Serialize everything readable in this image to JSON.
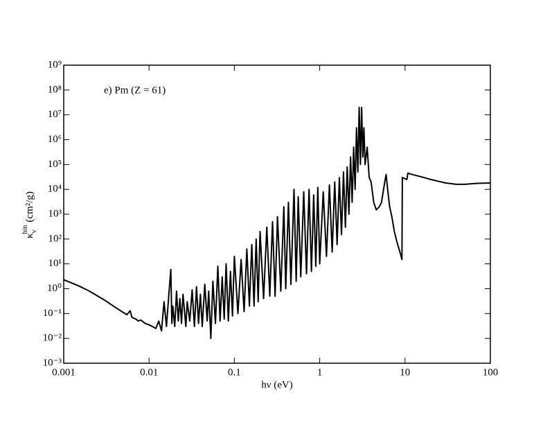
{
  "chart_data": {
    "type": "line",
    "annotation": "e) Pm (Z = 61)",
    "x_label": "hν (eV)",
    "y_label": {
      "symbol": "κ",
      "subscript": "ν",
      "superscript": "bin",
      "unit": "(cm²/g)"
    },
    "log_x": true,
    "log_y": true,
    "color": "#000000",
    "xlim": [
      0.001,
      100
    ],
    "ylim": [
      0.001,
      1000000000
    ],
    "xticks": [
      0.001,
      0.01,
      0.1,
      1,
      10,
      100
    ],
    "yticks": [
      {
        "value": 0.001,
        "label": "10⁻³"
      },
      {
        "value": 0.01,
        "label": "10⁻²"
      },
      {
        "value": 0.1,
        "label": "10⁻¹"
      },
      {
        "value": 1,
        "label": "10⁰"
      },
      {
        "value": 10,
        "label": "10¹"
      },
      {
        "value": 100,
        "label": "10²"
      },
      {
        "value": 1000,
        "label": "10³"
      },
      {
        "value": 10000,
        "label": "10⁴"
      },
      {
        "value": 100000,
        "label": "10⁵"
      },
      {
        "value": 1000000,
        "label": "10⁶"
      },
      {
        "value": 10000000,
        "label": "10⁷"
      },
      {
        "value": 100000000,
        "label": "10⁸"
      },
      {
        "value": 1000000000,
        "label": "10⁹"
      }
    ],
    "x": [
      0.001,
      0.0015,
      0.002,
      0.003,
      0.004,
      0.005,
      0.0055,
      0.006,
      0.0063,
      0.007,
      0.0075,
      0.008,
      0.009,
      0.01,
      0.011,
      0.012,
      0.013,
      0.014,
      0.015,
      0.016,
      0.017,
      0.018,
      0.0185,
      0.019,
      0.02,
      0.021,
      0.022,
      0.023,
      0.024,
      0.025,
      0.027,
      0.028,
      0.03,
      0.032,
      0.034,
      0.036,
      0.038,
      0.04,
      0.042,
      0.045,
      0.048,
      0.05,
      0.053,
      0.056,
      0.06,
      0.064,
      0.068,
      0.072,
      0.076,
      0.08,
      0.085,
      0.09,
      0.095,
      0.1,
      0.11,
      0.12,
      0.13,
      0.14,
      0.15,
      0.16,
      0.17,
      0.18,
      0.19,
      0.2,
      0.22,
      0.24,
      0.26,
      0.28,
      0.3,
      0.32,
      0.35,
      0.38,
      0.4,
      0.43,
      0.46,
      0.5,
      0.53,
      0.56,
      0.6,
      0.65,
      0.7,
      0.75,
      0.8,
      0.85,
      0.9,
      0.95,
      1,
      1.1,
      1.2,
      1.3,
      1.4,
      1.5,
      1.6,
      1.7,
      1.8,
      1.9,
      2,
      2.1,
      2.2,
      2.3,
      2.4,
      2.5,
      2.6,
      2.7,
      2.8,
      2.9,
      3.0,
      3.1,
      3.2,
      3.3,
      3.4,
      3.6,
      3.8,
      4.0,
      4.3,
      4.6,
      5.0,
      5.3,
      5.6,
      6.0,
      6.3,
      6.6,
      7.0,
      7.5,
      8.0,
      8.5,
      9.0,
      9.2,
      9.3,
      10.5,
      10.8,
      12,
      15,
      20,
      30,
      40,
      50,
      70,
      100
    ],
    "values": [
      2.3,
      1.3,
      0.8,
      0.35,
      0.18,
      0.11,
      0.09,
      0.13,
      0.07,
      0.06,
      0.05,
      0.055,
      0.04,
      0.035,
      0.03,
      0.025,
      0.05,
      0.02,
      0.3,
      0.03,
      0.5,
      6,
      0.04,
      0.2,
      0.03,
      0.8,
      0.05,
      0.4,
      0.04,
      0.6,
      0.03,
      0.3,
      0.05,
      0.9,
      0.03,
      1.2,
      0.04,
      0.6,
      0.03,
      1.5,
      0.05,
      0.8,
      0.01,
      2,
      0.04,
      8,
      0.05,
      3,
      0.06,
      10,
      0.05,
      5,
      0.08,
      20,
      0.1,
      15,
      0.12,
      40,
      0.2,
      60,
      0.2,
      100,
      0.3,
      200,
      0.4,
      300,
      0.5,
      500,
      0.5,
      800,
      0.8,
      2000,
      1,
      3000,
      1.5,
      10000,
      2,
      5000,
      3,
      8000,
      4,
      10000,
      5,
      6000,
      8,
      12000,
      10,
      8000,
      20,
      15000,
      30,
      20000,
      60,
      30000,
      150,
      50000,
      300,
      80000,
      1000,
      200000,
      3000,
      500000,
      10000,
      3000000,
      50000,
      20000000,
      100000,
      20000000,
      200000,
      3000000,
      100000,
      500000,
      30000,
      20000,
      3000,
      1500,
      2000,
      3000,
      10000,
      40000,
      8000,
      2000,
      800,
      200,
      80,
      40,
      20,
      15,
      30000,
      25000,
      45000,
      40000,
      33000,
      25000,
      18000,
      16000,
      16000,
      17500,
      18000
    ]
  }
}
